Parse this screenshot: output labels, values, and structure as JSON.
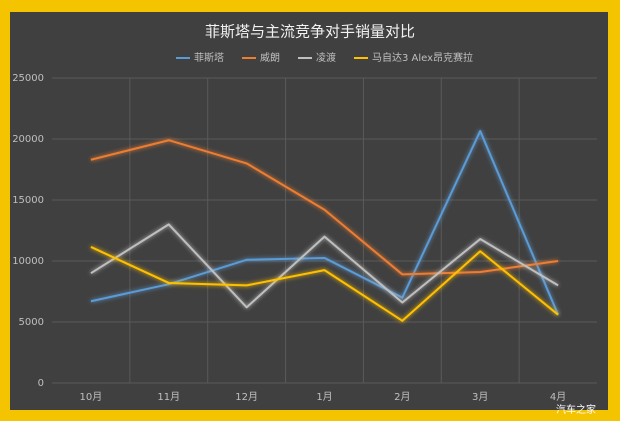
{
  "chart_data": {
    "type": "line",
    "title": "菲斯塔与主流竞争对手销量对比",
    "categories": [
      "10月",
      "11月",
      "12月",
      "1月",
      "2月",
      "3月",
      "4月"
    ],
    "series": [
      {
        "name": "菲斯塔",
        "color": "#5b9bd5",
        "values": [
          6700,
          8100,
          10100,
          10250,
          7000,
          20650,
          5600
        ]
      },
      {
        "name": "威朗",
        "color": "#ed7d31",
        "values": [
          18300,
          19900,
          18000,
          14200,
          8900,
          9100,
          10000
        ]
      },
      {
        "name": "凌渡",
        "color": "#bfbfbf",
        "values": [
          9000,
          13000,
          6200,
          12000,
          6600,
          11800,
          8000
        ]
      },
      {
        "name": "马自达3 Alex昂克赛拉",
        "color": "#ffc000",
        "values": [
          11150,
          8200,
          8000,
          9250,
          5100,
          10800,
          5600
        ]
      }
    ],
    "ylim": [
      0,
      25000
    ],
    "yticks": [
      0,
      5000,
      10000,
      15000,
      20000,
      25000
    ],
    "grid": true,
    "legend": "top",
    "watermark": "汽车之家"
  }
}
